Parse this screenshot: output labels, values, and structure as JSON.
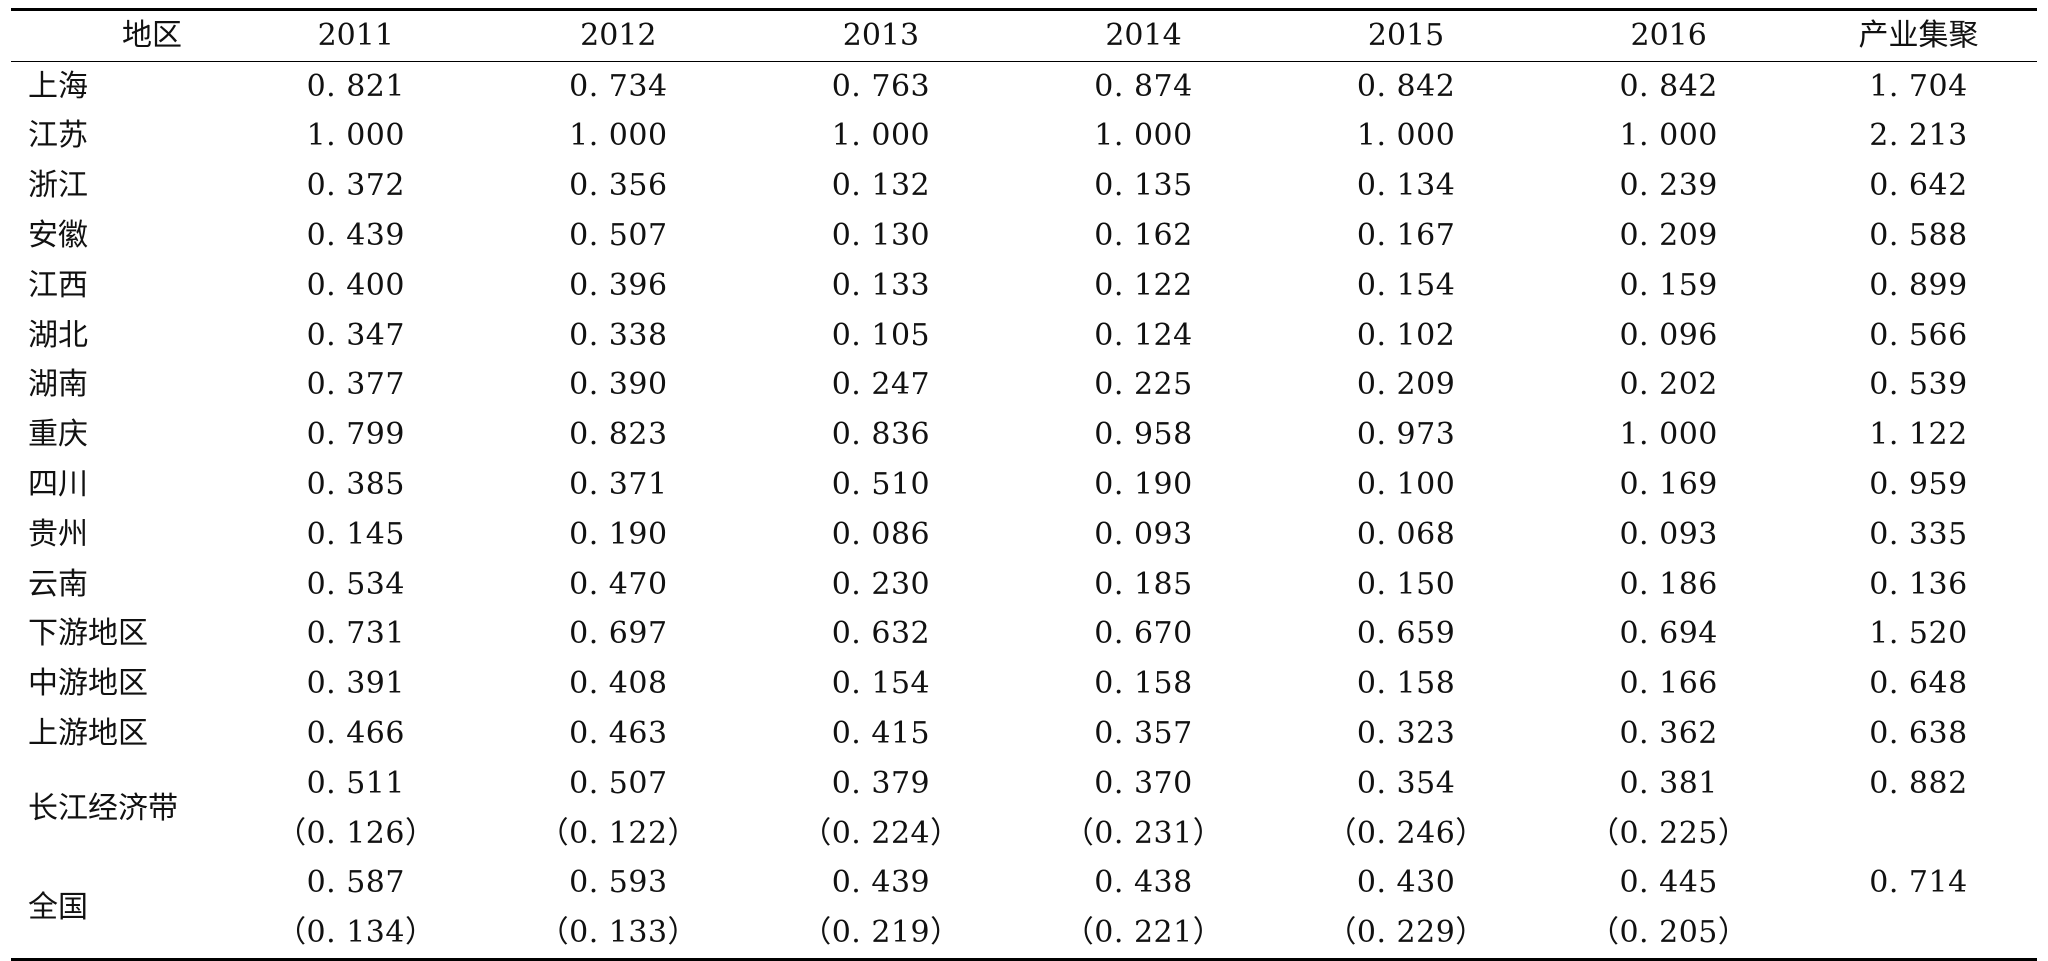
{
  "table": {
    "columns": [
      "地区",
      "2011",
      "2012",
      "2013",
      "2014",
      "2015",
      "2016",
      "产业集聚"
    ],
    "rows": [
      {
        "region": "上海",
        "values": [
          "0. 821",
          "0. 734",
          "0. 763",
          "0. 874",
          "0. 842",
          "0. 842"
        ],
        "agg": "1. 704"
      },
      {
        "region": "江苏",
        "values": [
          "1. 000",
          "1. 000",
          "1. 000",
          "1. 000",
          "1. 000",
          "1. 000"
        ],
        "agg": "2. 213"
      },
      {
        "region": "浙江",
        "values": [
          "0. 372",
          "0. 356",
          "0. 132",
          "0. 135",
          "0. 134",
          "0. 239"
        ],
        "agg": "0. 642"
      },
      {
        "region": "安徽",
        "values": [
          "0. 439",
          "0. 507",
          "0. 130",
          "0. 162",
          "0. 167",
          "0. 209"
        ],
        "agg": "0. 588"
      },
      {
        "region": "江西",
        "values": [
          "0. 400",
          "0. 396",
          "0. 133",
          "0. 122",
          "0. 154",
          "0. 159"
        ],
        "agg": "0. 899"
      },
      {
        "region": "湖北",
        "values": [
          "0. 347",
          "0. 338",
          "0. 105",
          "0. 124",
          "0. 102",
          "0. 096"
        ],
        "agg": "0. 566"
      },
      {
        "region": "湖南",
        "values": [
          "0. 377",
          "0. 390",
          "0. 247",
          "0. 225",
          "0. 209",
          "0. 202"
        ],
        "agg": "0. 539"
      },
      {
        "region": "重庆",
        "values": [
          "0. 799",
          "0. 823",
          "0. 836",
          "0. 958",
          "0. 973",
          "1. 000"
        ],
        "agg": "1. 122"
      },
      {
        "region": "四川",
        "values": [
          "0. 385",
          "0. 371",
          "0. 510",
          "0. 190",
          "0. 100",
          "0. 169"
        ],
        "agg": "0. 959"
      },
      {
        "region": "贵州",
        "values": [
          "0. 145",
          "0. 190",
          "0. 086",
          "0. 093",
          "0. 068",
          "0. 093"
        ],
        "agg": "0. 335"
      },
      {
        "region": "云南",
        "values": [
          "0. 534",
          "0. 470",
          "0. 230",
          "0. 185",
          "0. 150",
          "0. 186"
        ],
        "agg": "0. 136"
      },
      {
        "region": "下游地区",
        "values": [
          "0. 731",
          "0. 697",
          "0. 632",
          "0. 670",
          "0. 659",
          "0. 694"
        ],
        "agg": "1. 520"
      },
      {
        "region": "中游地区",
        "values": [
          "0. 391",
          "0. 408",
          "0. 154",
          "0. 158",
          "0. 158",
          "0. 166"
        ],
        "agg": "0. 648"
      },
      {
        "region": "上游地区",
        "values": [
          "0. 466",
          "0. 463",
          "0. 415",
          "0. 357",
          "0. 323",
          "0. 362"
        ],
        "agg": "0. 638"
      }
    ],
    "summary_rows": [
      {
        "region": "长江经济带",
        "values": [
          "0. 511",
          "0. 507",
          "0. 379",
          "0. 370",
          "0. 354",
          "0. 381"
        ],
        "sd": [
          "（0. 126）",
          "（0. 122）",
          "（0. 224）",
          "（0. 231）",
          "（0. 246）",
          "（0. 225）"
        ],
        "agg": "0. 882"
      },
      {
        "region": "全国",
        "values": [
          "0. 587",
          "0. 593",
          "0. 439",
          "0. 438",
          "0. 430",
          "0. 445"
        ],
        "sd": [
          "（0. 134）",
          "（0. 133）",
          "（0. 219）",
          "（0. 221）",
          "（0. 229）",
          "（0. 205）"
        ],
        "agg": "0. 714"
      }
    ]
  }
}
